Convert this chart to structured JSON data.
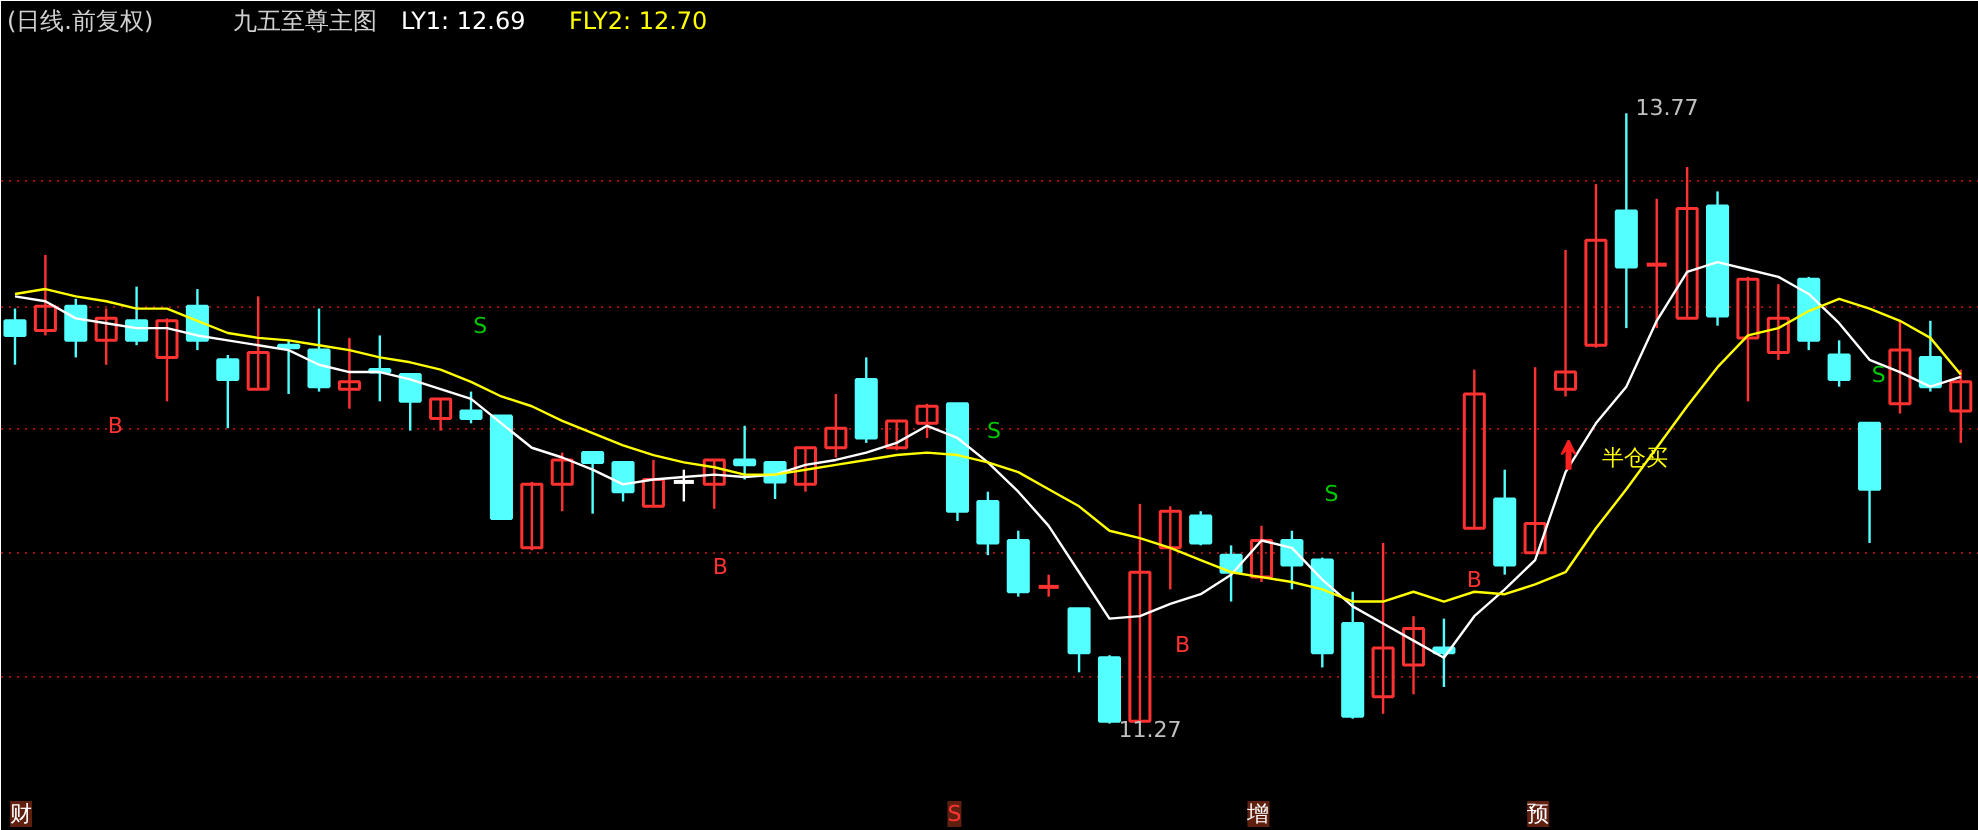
{
  "chart_data": {
    "type": "candlestick",
    "title": "(日线.前复权)",
    "subtitle": "九五至尊主图",
    "categories": [
      null,
      null,
      null,
      null,
      null,
      null,
      null,
      null,
      null,
      null,
      null,
      null,
      null,
      null,
      null,
      null,
      null,
      null,
      null,
      null,
      null,
      null,
      null,
      null,
      null,
      null,
      null,
      null,
      null,
      null,
      null,
      null,
      null,
      null,
      null,
      null,
      null,
      null,
      null,
      null,
      null,
      null,
      null,
      null,
      null,
      null,
      null,
      null,
      null,
      null,
      null,
      null,
      null,
      null,
      null,
      null,
      null,
      null,
      null,
      null,
      null,
      null,
      null,
      null,
      null
    ],
    "ohlc": [
      [
        12.92,
        12.97,
        12.74,
        12.86
      ],
      [
        12.88,
        13.19,
        12.86,
        12.98
      ],
      [
        12.98,
        13.01,
        12.77,
        12.84
      ],
      [
        12.84,
        12.97,
        12.74,
        12.93
      ],
      [
        12.92,
        13.06,
        12.82,
        12.84
      ],
      [
        12.77,
        12.93,
        12.59,
        12.92
      ],
      [
        12.98,
        13.05,
        12.8,
        12.84
      ],
      [
        12.76,
        12.78,
        12.48,
        12.68
      ],
      [
        12.64,
        13.02,
        12.64,
        12.79
      ],
      [
        12.82,
        12.84,
        12.62,
        12.81
      ],
      [
        12.8,
        12.97,
        12.63,
        12.65
      ],
      [
        12.64,
        12.85,
        12.56,
        12.67
      ],
      [
        12.72,
        12.86,
        12.59,
        12.71
      ],
      [
        12.7,
        12.7,
        12.47,
        12.59
      ],
      [
        12.52,
        12.6,
        12.47,
        12.6
      ],
      [
        12.55,
        12.63,
        12.5,
        12.52
      ],
      [
        12.53,
        12.53,
        12.11,
        12.11
      ],
      [
        11.99,
        12.26,
        11.98,
        12.25
      ],
      [
        12.25,
        12.38,
        12.14,
        12.35
      ],
      [
        12.38,
        12.38,
        12.13,
        12.34
      ],
      [
        12.34,
        12.34,
        12.18,
        12.22
      ],
      [
        12.16,
        12.35,
        12.16,
        12.27
      ],
      [
        12.26,
        12.31,
        12.18,
        12.26
      ],
      [
        12.25,
        12.35,
        12.15,
        12.35
      ],
      [
        12.35,
        12.49,
        12.27,
        12.33
      ],
      [
        12.34,
        12.34,
        12.19,
        12.26
      ],
      [
        12.25,
        12.4,
        12.22,
        12.4
      ],
      [
        12.4,
        12.62,
        12.36,
        12.48
      ],
      [
        12.68,
        12.77,
        12.42,
        12.44
      ],
      [
        12.4,
        12.51,
        12.39,
        12.51
      ],
      [
        12.5,
        12.58,
        12.44,
        12.57
      ],
      [
        12.58,
        12.58,
        12.1,
        12.14
      ],
      [
        12.18,
        12.22,
        11.96,
        12.01
      ],
      [
        12.02,
        12.06,
        11.79,
        11.81
      ],
      [
        11.83,
        11.88,
        11.79,
        11.83
      ],
      [
        11.74,
        11.74,
        11.48,
        11.56
      ],
      [
        11.54,
        11.55,
        11.27,
        11.28
      ],
      [
        11.28,
        12.17,
        11.28,
        11.89
      ],
      [
        11.99,
        12.16,
        11.82,
        12.14
      ],
      [
        12.12,
        12.14,
        12.0,
        12.01
      ],
      [
        11.96,
        12.0,
        11.77,
        11.89
      ],
      [
        11.87,
        12.08,
        11.85,
        12.02
      ],
      [
        12.02,
        12.06,
        11.82,
        11.92
      ],
      [
        11.94,
        11.95,
        11.5,
        11.56
      ],
      [
        11.68,
        11.81,
        11.29,
        11.3
      ],
      [
        11.38,
        12.01,
        11.31,
        11.58
      ],
      [
        11.51,
        11.71,
        11.39,
        11.66
      ],
      [
        11.58,
        11.7,
        11.42,
        11.56
      ],
      [
        12.07,
        12.72,
        12.07,
        12.62
      ],
      [
        12.19,
        12.31,
        11.88,
        11.92
      ],
      [
        11.97,
        12.73,
        11.97,
        12.09
      ],
      [
        12.64,
        13.21,
        12.61,
        12.71
      ],
      [
        12.82,
        13.48,
        12.81,
        13.25
      ],
      [
        13.37,
        13.77,
        12.89,
        13.14
      ],
      [
        13.15,
        13.42,
        12.89,
        13.15
      ],
      [
        12.93,
        13.55,
        12.93,
        13.38
      ],
      [
        13.39,
        13.45,
        12.9,
        12.94
      ],
      [
        12.85,
        13.1,
        12.59,
        13.09
      ],
      [
        12.79,
        13.07,
        12.76,
        12.93
      ],
      [
        13.09,
        13.1,
        12.8,
        12.84
      ],
      [
        12.78,
        12.84,
        12.65,
        12.68
      ],
      [
        12.5,
        12.5,
        12.01,
        12.23
      ],
      [
        12.58,
        12.92,
        12.54,
        12.8
      ],
      [
        12.77,
        12.92,
        12.63,
        12.65
      ],
      [
        12.55,
        12.72,
        12.42,
        12.67
      ]
    ],
    "colors": [
      "#54ffff",
      "#ff3232",
      "#54ffff",
      "#ff3232",
      "#54ffff",
      "#ff3232",
      "#54ffff",
      "#54ffff",
      "#ff3232",
      "#54ffff",
      "#54ffff",
      "#ff3232",
      "#54ffff",
      "#54ffff",
      "#ff3232",
      "#54ffff",
      "#54ffff",
      "#ff3232",
      "#ff3232",
      "#54ffff",
      "#54ffff",
      "#ff3232",
      "#ffffff",
      "#ff3232",
      "#54ffff",
      "#54ffff",
      "#ff3232",
      "#ff3232",
      "#54ffff",
      "#ff3232",
      "#ff3232",
      "#54ffff",
      "#54ffff",
      "#54ffff",
      "#ff3232",
      "#54ffff",
      "#54ffff",
      "#ff3232",
      "#ff3232",
      "#54ffff",
      "#54ffff",
      "#ff3232",
      "#54ffff",
      "#54ffff",
      "#54ffff",
      "#ff3232",
      "#ff3232",
      "#54ffff",
      "#ff3232",
      "#54ffff",
      "#ff3232",
      "#ff3232",
      "#ff3232",
      "#54ffff",
      "#ff3232",
      "#ff3232",
      "#54ffff",
      "#ff3232",
      "#ff3232",
      "#54ffff",
      "#54ffff",
      "#54ffff",
      "#ff3232",
      "#54ffff",
      "#ff3232"
    ],
    "series": [
      {
        "name": "LY1: 12.69",
        "type": "line",
        "color": "#ffffff",
        "values": [
          13.02,
          13.0,
          12.93,
          12.91,
          12.89,
          12.89,
          12.86,
          12.84,
          12.82,
          12.8,
          12.74,
          12.71,
          12.71,
          12.68,
          12.64,
          12.6,
          12.5,
          12.4,
          12.36,
          12.31,
          12.25,
          12.27,
          12.28,
          12.29,
          12.28,
          12.29,
          12.33,
          12.35,
          12.38,
          12.42,
          12.49,
          12.44,
          12.34,
          12.22,
          12.08,
          11.89,
          11.7,
          11.71,
          11.76,
          11.8,
          11.88,
          12.02,
          11.99,
          11.86,
          11.75,
          11.68,
          11.61,
          11.54,
          11.71,
          11.82,
          11.94,
          12.3,
          12.5,
          12.65,
          12.92,
          13.12,
          13.16,
          13.13,
          13.1,
          13.03,
          12.91,
          12.76,
          12.71,
          12.65,
          12.69
        ]
      },
      {
        "name": "FLY2: 12.70",
        "type": "line",
        "color": "#ffff00",
        "values": [
          13.03,
          13.05,
          13.02,
          13.0,
          12.97,
          12.97,
          12.92,
          12.87,
          12.85,
          12.84,
          12.82,
          12.8,
          12.77,
          12.75,
          12.72,
          12.67,
          12.61,
          12.57,
          12.51,
          12.46,
          12.41,
          12.37,
          12.34,
          12.32,
          12.29,
          12.29,
          12.31,
          12.33,
          12.35,
          12.37,
          12.38,
          12.37,
          12.34,
          12.3,
          12.23,
          12.16,
          12.06,
          12.03,
          11.99,
          11.94,
          11.89,
          11.87,
          11.85,
          11.82,
          11.77,
          11.77,
          11.81,
          11.77,
          11.81,
          11.8,
          11.84,
          11.89,
          12.07,
          12.23,
          12.4,
          12.57,
          12.73,
          12.86,
          12.89,
          12.96,
          13.01,
          12.97,
          12.92,
          12.85,
          12.7
        ]
      }
    ],
    "annotations": [
      "B",
      "S",
      "B",
      "S",
      "B",
      "S",
      "B",
      "S",
      "半仓买",
      "13.77",
      "11.27",
      "财",
      "S",
      "增",
      "预"
    ],
    "ylim": [
      10.83,
      14.23
    ],
    "yticks": [
      {
        "value": 13.49,
        "label": null
      },
      {
        "value": 12.98,
        "label": null
      },
      {
        "value": 12.48,
        "label": null
      },
      {
        "value": 11.97,
        "label": null
      },
      {
        "value": 11.46,
        "label": null
      }
    ],
    "grid": "y",
    "tick_labels": false,
    "legend": "top left"
  }
}
